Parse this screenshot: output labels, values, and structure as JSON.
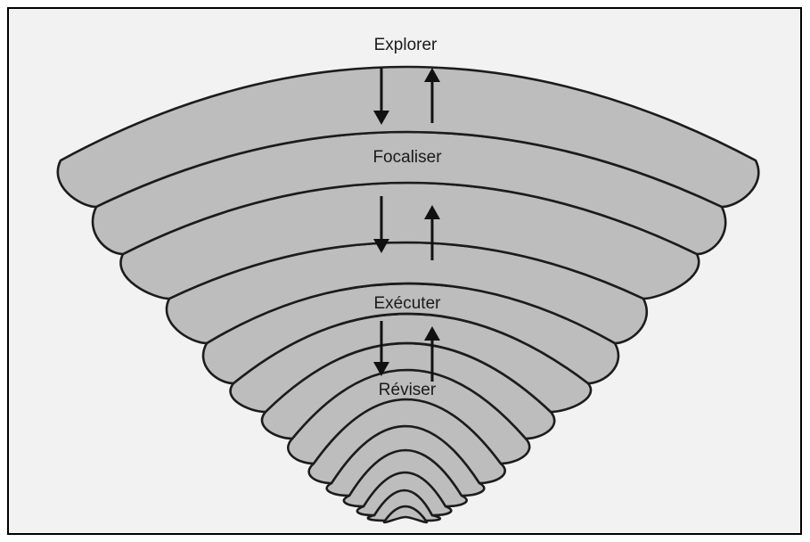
{
  "stages": [
    {
      "label": "Explorer"
    },
    {
      "label": "Focaliser"
    },
    {
      "label": "Exécuter"
    },
    {
      "label": "Réviser"
    }
  ]
}
